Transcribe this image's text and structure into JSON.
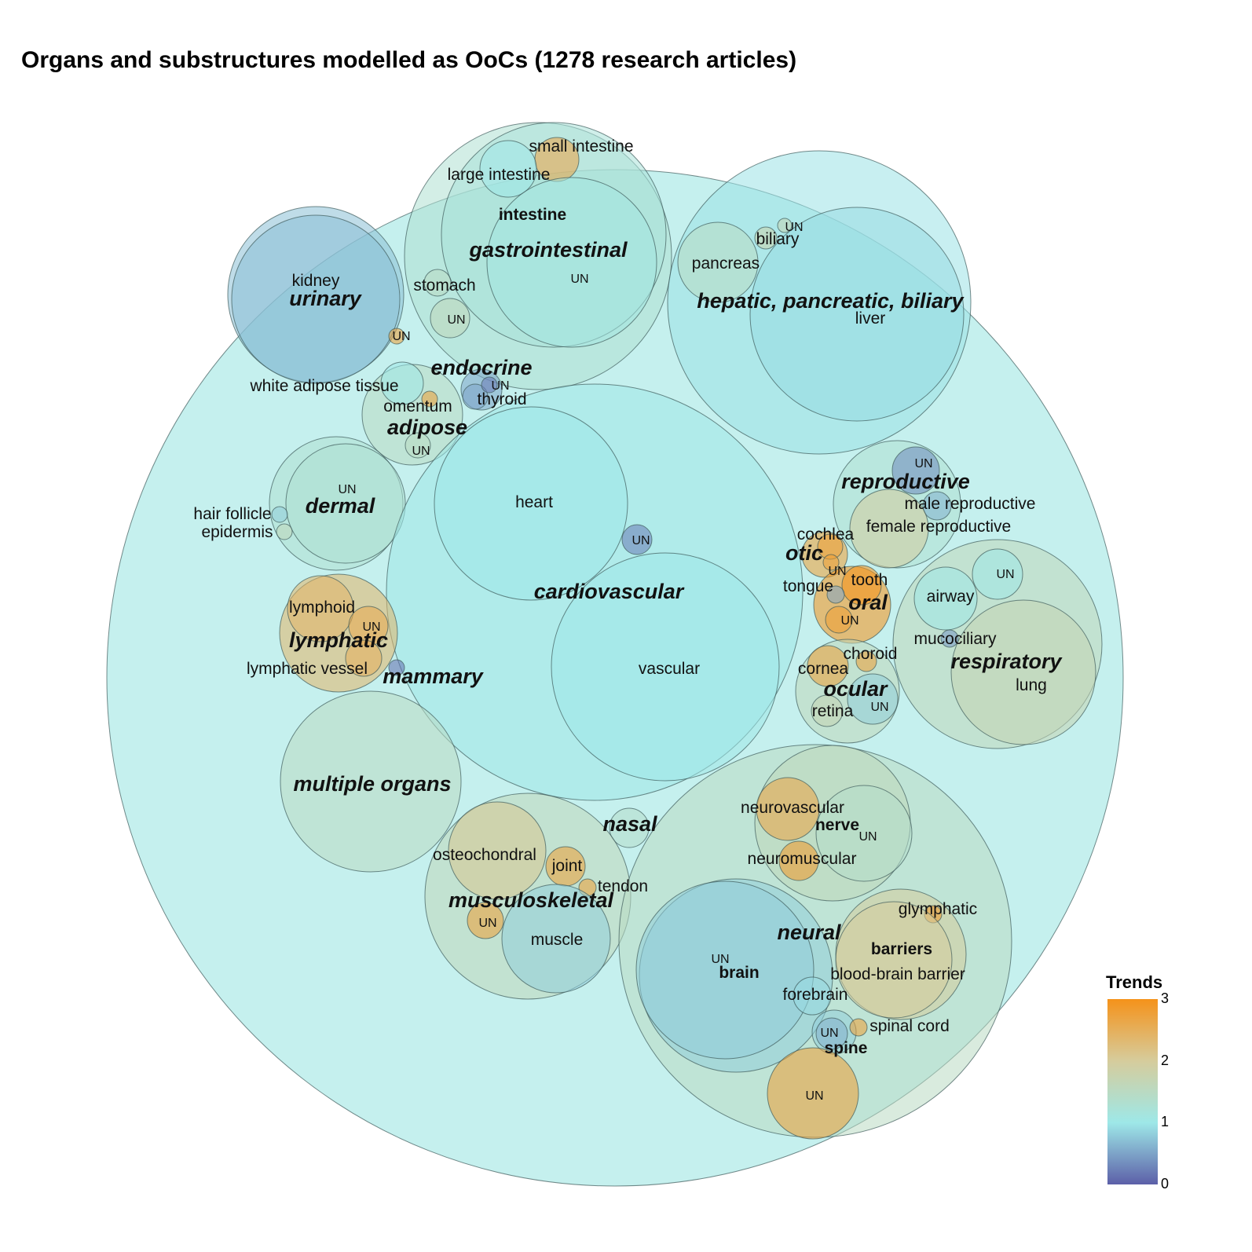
{
  "title": "Organs and substructures modelled as OoCs (1278 research articles)",
  "legend": {
    "title": "Trends",
    "min": 0,
    "max": 3,
    "ticks": [
      "0",
      "1",
      "2",
      "3"
    ],
    "colors": [
      "#5c5fa8",
      "#9ee8e8",
      "#d6cc9c",
      "#f5921a"
    ]
  },
  "chart_data": {
    "type": "circle_packing",
    "title": "Organs and substructures modelled as OoCs (1278 research articles)",
    "color_scale": {
      "name": "Trends",
      "range": [
        0,
        3
      ]
    },
    "root": {
      "name": "",
      "trend": 1.05
    },
    "groups": [
      {
        "name": "gastrointestinal",
        "trend": 1.3,
        "children": [
          {
            "name": "intestine",
            "trend": 1.2,
            "children": [
              {
                "name": "small intestine",
                "trend": 2.7
              },
              {
                "name": "large intestine",
                "trend": 1.0
              },
              {
                "name": "UN",
                "trend": 1.1
              }
            ]
          },
          {
            "name": "stomach",
            "trend": 1.5
          },
          {
            "name": "UN",
            "trend": 1.6
          }
        ]
      },
      {
        "name": "hepatic, pancreatic, biliary",
        "trend": 0.95,
        "children": [
          {
            "name": "pancreas",
            "trend": 1.5
          },
          {
            "name": "biliary",
            "trend": 1.8
          },
          {
            "name": "UN",
            "trend": 1.7
          },
          {
            "name": "liver",
            "trend": 0.9
          }
        ]
      },
      {
        "name": "urinary",
        "trend": 0.7,
        "children": [
          {
            "name": "kidney",
            "trend": 0.7
          },
          {
            "name": "UN",
            "trend": 2.8
          }
        ]
      },
      {
        "name": "endocrine",
        "trend": 0.5,
        "children": [
          {
            "name": "thyroid",
            "trend": 0.5
          },
          {
            "name": "UN",
            "trend": 0.2
          }
        ]
      },
      {
        "name": "adipose",
        "trend": 1.5,
        "children": [
          {
            "name": "white adipose tissue",
            "trend": 1.0
          },
          {
            "name": "omentum",
            "trend": 2.8
          },
          {
            "name": "UN",
            "trend": 1.5
          }
        ]
      },
      {
        "name": "dermal",
        "trend": 1.3,
        "children": [
          {
            "name": "UN",
            "trend": 1.3
          },
          {
            "name": "hair follicle",
            "trend": 0.8
          },
          {
            "name": "epidermis",
            "trend": 1.6
          }
        ]
      },
      {
        "name": "cardiovascular",
        "trend": 1.0,
        "children": [
          {
            "name": "heart",
            "trend": 1.0
          },
          {
            "name": "vascular",
            "trend": 1.0
          },
          {
            "name": "UN",
            "trend": 0.2
          }
        ]
      },
      {
        "name": "lymphatic",
        "trend": 2.4,
        "children": [
          {
            "name": "lymphoid",
            "trend": 2.4
          },
          {
            "name": "UN",
            "trend": 2.6
          },
          {
            "name": "lymphatic vessel",
            "trend": 2.5
          }
        ]
      },
      {
        "name": "mammary",
        "trend": 0.1
      },
      {
        "name": "multiple organs",
        "trend": 1.5
      },
      {
        "name": "reproductive",
        "trend": 1.3,
        "children": [
          {
            "name": "UN",
            "trend": 0.3
          },
          {
            "name": "male reproductive",
            "trend": 0.6
          },
          {
            "name": "female reproductive",
            "trend": 2.0
          }
        ]
      },
      {
        "name": "otic",
        "trend": 2.8,
        "children": [
          {
            "name": "cochlea",
            "trend": 2.8
          },
          {
            "name": "UN",
            "trend": 2.8
          }
        ]
      },
      {
        "name": "oral",
        "trend": 3.0,
        "children": [
          {
            "name": "tooth",
            "trend": 3.0
          },
          {
            "name": "tongue",
            "trend": 0.5
          },
          {
            "name": "UN",
            "trend": 2.8
          }
        ]
      },
      {
        "name": "respiratory",
        "trend": 1.6,
        "children": [
          {
            "name": "airway",
            "trend": 1.0
          },
          {
            "name": "UN",
            "trend": 1.0
          },
          {
            "name": "mucociliary",
            "trend": 0.4
          },
          {
            "name": "lung",
            "trend": 1.7
          }
        ]
      },
      {
        "name": "ocular",
        "trend": 1.6,
        "children": [
          {
            "name": "cornea",
            "trend": 2.8
          },
          {
            "name": "choroid",
            "trend": 2.8
          },
          {
            "name": "retina",
            "trend": 1.7
          },
          {
            "name": "UN",
            "trend": 0.8
          }
        ]
      },
      {
        "name": "nasal",
        "trend": 1.4
      },
      {
        "name": "musculoskeletal",
        "trend": 1.6,
        "children": [
          {
            "name": "osteochondral",
            "trend": 2.1
          },
          {
            "name": "joint",
            "trend": 2.8
          },
          {
            "name": "tendon",
            "trend": 2.8
          },
          {
            "name": "UN",
            "trend": 2.8
          },
          {
            "name": "muscle",
            "trend": 0.8
          }
        ]
      },
      {
        "name": "neural",
        "trend": 1.5,
        "children": [
          {
            "name": "nerve",
            "trend": 1.6,
            "children": [
              {
                "name": "neurovascular",
                "trend": 2.7
              },
              {
                "name": "neuromuscular",
                "trend": 2.9
              },
              {
                "name": "UN",
                "trend": 1.4
              }
            ]
          },
          {
            "name": "brain",
            "trend": 0.8,
            "children": [
              {
                "name": "UN",
                "trend": 0.8
              },
              {
                "name": "forebrain",
                "trend": 0.9
              }
            ]
          },
          {
            "name": "barriers",
            "trend": 2.0,
            "children": [
              {
                "name": "glymphatic",
                "trend": 2.9
              },
              {
                "name": "blood-brain barrier",
                "trend": 2.0
              }
            ]
          },
          {
            "name": "spine",
            "trend": 0.8,
            "children": [
              {
                "name": "UN",
                "trend": 0.6
              },
              {
                "name": "spinal cord",
                "trend": 2.8
              }
            ]
          },
          {
            "name": "UN",
            "trend": 2.8
          }
        ]
      }
    ]
  }
}
